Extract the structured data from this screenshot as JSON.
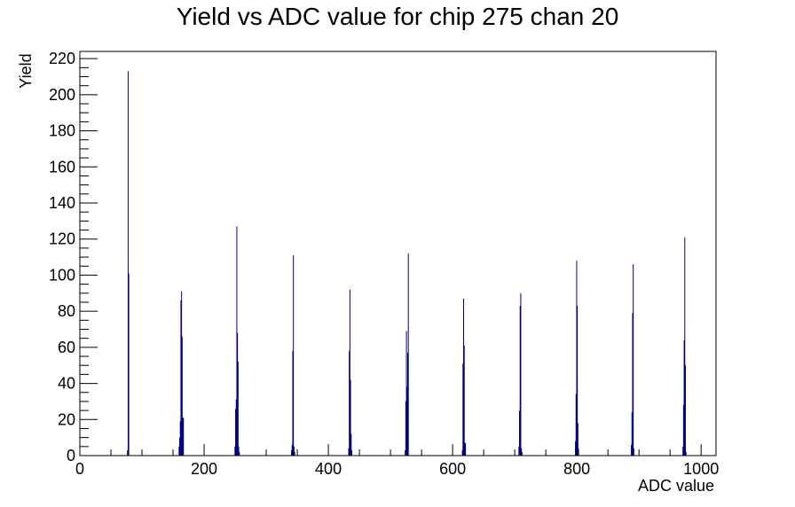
{
  "chart_data": {
    "type": "bar",
    "title": "Yield vs ADC value for chip 275 chan 20",
    "xlabel": "ADC value",
    "ylabel": "Yield",
    "xlim": [
      0,
      1024
    ],
    "ylim": [
      0,
      224
    ],
    "x_ticks": [
      0,
      200,
      400,
      600,
      800,
      1000
    ],
    "y_ticks": [
      0,
      20,
      40,
      60,
      80,
      100,
      120,
      140,
      160,
      180,
      200,
      220
    ],
    "grid": false,
    "legend": "none",
    "color": "#000080",
    "series": [
      {
        "x": [
          76,
          77,
          78,
          159,
          160,
          161,
          162,
          163,
          164,
          165,
          166,
          249,
          250,
          251,
          252,
          253,
          254,
          255,
          256,
          340,
          341,
          342,
          343,
          344,
          345,
          432,
          433,
          434,
          435,
          436,
          437,
          523,
          524,
          525,
          526,
          527,
          528,
          615,
          616,
          617,
          618,
          619,
          620,
          706,
          707,
          708,
          709,
          710,
          711,
          797,
          798,
          799,
          800,
          801,
          802,
          887,
          888,
          889,
          890,
          891,
          970,
          971,
          972,
          973,
          974,
          975
        ],
        "y": [
          3,
          213,
          101,
          5,
          10,
          19,
          86,
          91,
          66,
          21,
          21,
          5,
          26,
          31,
          127,
          68,
          52,
          5,
          2,
          3,
          6,
          58,
          111,
          5,
          2,
          4,
          58,
          92,
          42,
          12,
          3,
          3,
          30,
          69,
          38,
          57,
          112,
          3,
          51,
          87,
          61,
          7,
          7,
          5,
          25,
          83,
          90,
          4,
          2,
          8,
          34,
          108,
          83,
          18,
          4,
          6,
          24,
          79,
          106,
          4,
          5,
          28,
          64,
          121,
          50,
          2
        ]
      }
    ]
  }
}
